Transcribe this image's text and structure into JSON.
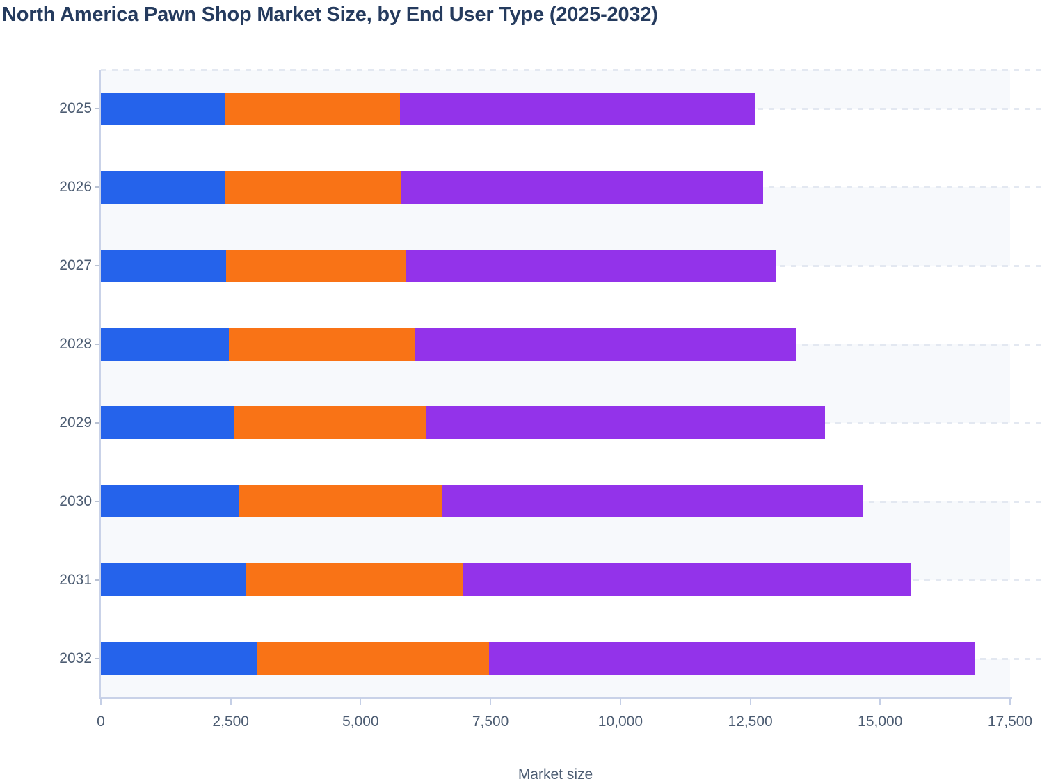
{
  "title": "North America Pawn Shop Market Size, by End User Type (2025-2032)",
  "chart_data": {
    "type": "bar",
    "orientation": "horizontal",
    "stacked": true,
    "title": "North America Pawn Shop Market Size, by End User Type (2025-2032)",
    "xlabel": "Market size",
    "ylabel": "",
    "xlim": [
      0,
      17500
    ],
    "x_tick_values": [
      0,
      2500,
      5000,
      7500,
      10000,
      12500,
      15000,
      17500
    ],
    "x_tick_labels": [
      "0",
      "2,500",
      "5,000",
      "7,500",
      "10,000",
      "12,500",
      "15,000",
      "17,500"
    ],
    "categories": [
      "2025",
      "2026",
      "2027",
      "2028",
      "2029",
      "2030",
      "2031",
      "2032"
    ],
    "series": [
      {
        "name": "blue",
        "color": "#2563eb",
        "values": [
          2380,
          2395,
          2415,
          2460,
          2560,
          2660,
          2785,
          2995
        ]
      },
      {
        "name": "orange",
        "color": "#f97316",
        "values": [
          3380,
          3380,
          3455,
          3585,
          3705,
          3895,
          4180,
          4475
        ]
      },
      {
        "name": "purple",
        "color": "#9333ea",
        "values": [
          6830,
          6975,
          7115,
          7345,
          7675,
          8120,
          8620,
          9345
        ]
      }
    ],
    "stack_totals": [
      12590,
      12750,
      12985,
      13390,
      13940,
      14675,
      15585,
      16815
    ],
    "legend_position": "none",
    "grid": "horizontal dashed lines at category centers with alternating shaded bands"
  },
  "style": {
    "title_color": "#253b5e",
    "axis_label_color": "#4c5c72",
    "axis_line_color": "#c9d2e8",
    "band_color": "#f7f9fc",
    "dash_color": "#e3e8f1"
  }
}
